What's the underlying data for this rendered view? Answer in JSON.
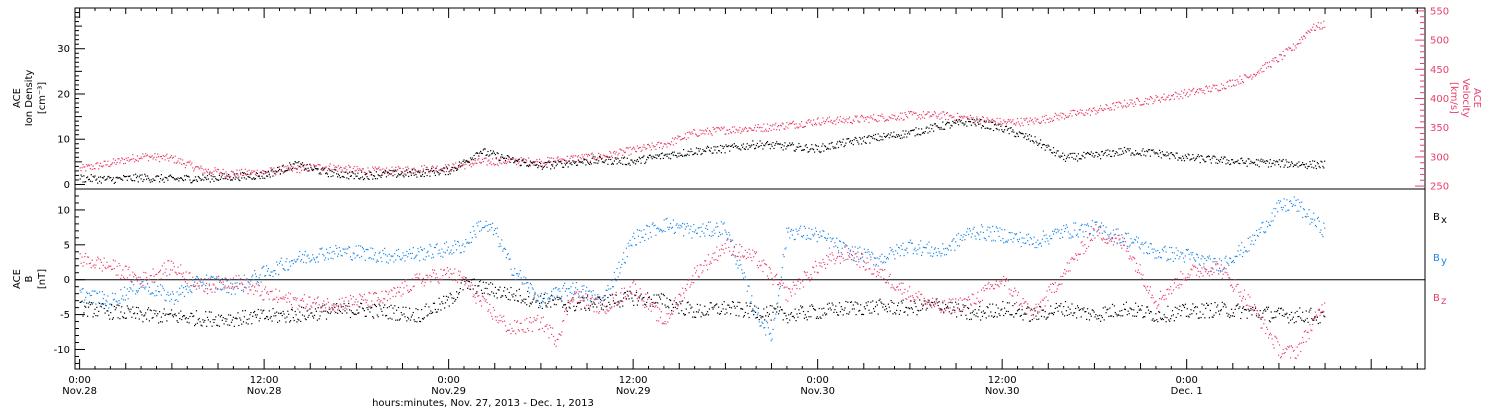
{
  "chart_data": [
    {
      "type": "scatter",
      "panel": "top",
      "ylabel_left": [
        "ACE",
        "Ion Density",
        "[cm⁻³]"
      ],
      "ylabel_right": [
        "ACE",
        "Velocity",
        "[km/s]"
      ],
      "ylim_left": [
        -1,
        39
      ],
      "ylim_right": [
        245,
        555
      ],
      "left_ticks": [
        "0",
        "10",
        "20",
        "30"
      ],
      "left_tick_values": [
        0,
        10,
        20,
        30
      ],
      "right_ticks": [
        "250",
        "300",
        "350",
        "400",
        "450",
        "500",
        "550"
      ],
      "right_tick_values": [
        250,
        300,
        350,
        400,
        450,
        500,
        550
      ],
      "colors": {
        "density": "#000000",
        "velocity": "#e8406a"
      },
      "series": [
        {
          "axis": "left",
          "color": "#000000",
          "points": [
            [
              0,
              1.5
            ],
            [
              2,
              1.2
            ],
            [
              4,
              1.6
            ],
            [
              6,
              1.3
            ],
            [
              8,
              1.5
            ],
            [
              10,
              1.8
            ],
            [
              12,
              2.2
            ],
            [
              14,
              4.5
            ],
            [
              16,
              2.8
            ],
            [
              18,
              2.0
            ],
            [
              20,
              2.4
            ],
            [
              22,
              2.6
            ],
            [
              24,
              3.2
            ],
            [
              25,
              5
            ],
            [
              26,
              7.5
            ],
            [
              27,
              6.5
            ],
            [
              28,
              5.5
            ],
            [
              30,
              4.2
            ],
            [
              32,
              5
            ],
            [
              34,
              5.5
            ],
            [
              36,
              5.2
            ],
            [
              38,
              6.5
            ],
            [
              40,
              7.5
            ],
            [
              42,
              8
            ],
            [
              44,
              9
            ],
            [
              46,
              8.5
            ],
            [
              48,
              8
            ],
            [
              50,
              9.5
            ],
            [
              52,
              10.5
            ],
            [
              54,
              11.5
            ],
            [
              56,
              13
            ],
            [
              58,
              14
            ],
            [
              60,
              12.5
            ],
            [
              62,
              10
            ],
            [
              64,
              6
            ],
            [
              66,
              6.5
            ],
            [
              68,
              7.5
            ],
            [
              70,
              7
            ],
            [
              72,
              6
            ],
            [
              74,
              5.5
            ],
            [
              76,
              5
            ],
            [
              78,
              4.8
            ],
            [
              80,
              4.5
            ],
            [
              81,
              4.5
            ]
          ]
        },
        {
          "axis": "right",
          "color": "#e8406a",
          "points": [
            [
              0,
              280
            ],
            [
              2,
              290
            ],
            [
              4,
              302
            ],
            [
              6,
              298
            ],
            [
              8,
              278
            ],
            [
              10,
              272
            ],
            [
              12,
              275
            ],
            [
              14,
              280
            ],
            [
              16,
              284
            ],
            [
              18,
              278
            ],
            [
              20,
              276
            ],
            [
              22,
              280
            ],
            [
              24,
              282
            ],
            [
              26,
              292
            ],
            [
              28,
              294
            ],
            [
              30,
              292
            ],
            [
              32,
              298
            ],
            [
              34,
              302
            ],
            [
              36,
              312
            ],
            [
              38,
              322
            ],
            [
              40,
              342
            ],
            [
              42,
              347
            ],
            [
              44,
              350
            ],
            [
              46,
              355
            ],
            [
              48,
              362
            ],
            [
              50,
              364
            ],
            [
              52,
              368
            ],
            [
              54,
              372
            ],
            [
              56,
              372
            ],
            [
              58,
              366
            ],
            [
              60,
              360
            ],
            [
              62,
              362
            ],
            [
              64,
              372
            ],
            [
              66,
              380
            ],
            [
              68,
              392
            ],
            [
              70,
              400
            ],
            [
              72,
              410
            ],
            [
              74,
              420
            ],
            [
              76,
              438
            ],
            [
              78,
              470
            ],
            [
              79,
              490
            ],
            [
              80,
              520
            ],
            [
              81,
              528
            ]
          ]
        }
      ]
    },
    {
      "type": "scatter",
      "panel": "bottom",
      "ylabel_left": [
        "ACE",
        "B",
        "[nT]"
      ],
      "ylim": [
        -12.8,
        13
      ],
      "left_ticks": [
        "-10",
        "-5",
        "0",
        "5",
        "10"
      ],
      "left_tick_values": [
        -10,
        -5,
        0,
        5,
        10
      ],
      "legend": [
        {
          "label": "B",
          "sub": "x",
          "color": "#000000"
        },
        {
          "label": "B",
          "sub": "y",
          "color": "#1e88e5"
        },
        {
          "label": "B",
          "sub": "z",
          "color": "#e8406a"
        }
      ],
      "series": [
        {
          "name": "Bx",
          "color": "#000000",
          "points": [
            [
              0,
              -4
            ],
            [
              2,
              -4.5
            ],
            [
              4,
              -5
            ],
            [
              6,
              -5.2
            ],
            [
              8,
              -5.5
            ],
            [
              10,
              -5.5
            ],
            [
              12,
              -5.2
            ],
            [
              14,
              -5.0
            ],
            [
              16,
              -4.5
            ],
            [
              18,
              -4.2
            ],
            [
              20,
              -4.5
            ],
            [
              22,
              -5
            ],
            [
              24,
              -3
            ],
            [
              25,
              -0.5
            ],
            [
              26,
              -1
            ],
            [
              28,
              -2
            ],
            [
              30,
              -3
            ],
            [
              32,
              -3.5
            ],
            [
              34,
              -3.2
            ],
            [
              36,
              -2.5
            ],
            [
              38,
              -3
            ],
            [
              40,
              -4.5
            ],
            [
              42,
              -4
            ],
            [
              44,
              -4.5
            ],
            [
              46,
              -5
            ],
            [
              48,
              -4.5
            ],
            [
              50,
              -4
            ],
            [
              52,
              -3.8
            ],
            [
              54,
              -4
            ],
            [
              56,
              -3.5
            ],
            [
              58,
              -5
            ],
            [
              60,
              -4
            ],
            [
              62,
              -5
            ],
            [
              64,
              -4
            ],
            [
              66,
              -5
            ],
            [
              68,
              -4
            ],
            [
              70,
              -5
            ],
            [
              72,
              -4.5
            ],
            [
              74,
              -4.2
            ],
            [
              76,
              -4.5
            ],
            [
              78,
              -5
            ],
            [
              80,
              -5
            ],
            [
              81,
              -5.5
            ]
          ]
        },
        {
          "name": "By",
          "color": "#1e88e5",
          "points": [
            [
              0,
              -2
            ],
            [
              2,
              -3
            ],
            [
              4,
              -0.5
            ],
            [
              6,
              -2.5
            ],
            [
              8,
              0
            ],
            [
              10,
              -1
            ],
            [
              12,
              1
            ],
            [
              14,
              3
            ],
            [
              16,
              4
            ],
            [
              18,
              4
            ],
            [
              20,
              3.5
            ],
            [
              22,
              3.8
            ],
            [
              24,
              4.5
            ],
            [
              25,
              5
            ],
            [
              26,
              8
            ],
            [
              27,
              7
            ],
            [
              28,
              2
            ],
            [
              30,
              -3
            ],
            [
              32,
              -1
            ],
            [
              34,
              -3
            ],
            [
              36,
              6
            ],
            [
              38,
              8
            ],
            [
              40,
              7
            ],
            [
              42,
              7.5
            ],
            [
              44,
              -5
            ],
            [
              45,
              -8
            ],
            [
              46,
              7
            ],
            [
              48,
              6.5
            ],
            [
              50,
              4
            ],
            [
              52,
              3
            ],
            [
              54,
              5
            ],
            [
              56,
              4
            ],
            [
              58,
              7
            ],
            [
              60,
              6.5
            ],
            [
              62,
              5.5
            ],
            [
              64,
              7
            ],
            [
              66,
              7.5
            ],
            [
              68,
              6
            ],
            [
              70,
              4
            ],
            [
              72,
              3.5
            ],
            [
              74,
              2
            ],
            [
              76,
              5
            ],
            [
              78,
              10.5
            ],
            [
              79,
              11
            ],
            [
              80,
              9
            ],
            [
              81,
              7
            ]
          ]
        },
        {
          "name": "Bz",
          "color": "#e8406a",
          "points": [
            [
              0,
              3
            ],
            [
              2,
              2
            ],
            [
              4,
              0
            ],
            [
              6,
              2
            ],
            [
              8,
              -1
            ],
            [
              10,
              0
            ],
            [
              12,
              -2
            ],
            [
              14,
              -3
            ],
            [
              16,
              -3.5
            ],
            [
              18,
              -3
            ],
            [
              20,
              -2.5
            ],
            [
              22,
              0
            ],
            [
              24,
              1
            ],
            [
              25,
              0
            ],
            [
              26,
              -3
            ],
            [
              27,
              -5
            ],
            [
              28,
              -7
            ],
            [
              30,
              -6
            ],
            [
              31,
              -8.5
            ],
            [
              32,
              -2
            ],
            [
              34,
              -4
            ],
            [
              36,
              -1
            ],
            [
              38,
              -6
            ],
            [
              40,
              1
            ],
            [
              42,
              5
            ],
            [
              44,
              3
            ],
            [
              46,
              -2
            ],
            [
              48,
              2
            ],
            [
              50,
              4
            ],
            [
              52,
              1
            ],
            [
              54,
              -2
            ],
            [
              56,
              -4
            ],
            [
              58,
              -3
            ],
            [
              60,
              0
            ],
            [
              62,
              -5
            ],
            [
              64,
              1
            ],
            [
              66,
              7
            ],
            [
              68,
              5
            ],
            [
              70,
              -3
            ],
            [
              72,
              1
            ],
            [
              74,
              2
            ],
            [
              76,
              -3
            ],
            [
              78,
              -10
            ],
            [
              79,
              -10.5
            ],
            [
              80,
              -7
            ],
            [
              81,
              -3
            ]
          ]
        }
      ]
    }
  ],
  "x_axis": {
    "xlim": [
      -0.3,
      87.5
    ],
    "tick_values": [
      0,
      12,
      24,
      36,
      48,
      60,
      72,
      84
    ],
    "tick_time": [
      "0:00",
      "12:00",
      "0:00",
      "12:00",
      "0:00",
      "12:00",
      "0:00",
      ""
    ],
    "tick_date": [
      "Nov.28",
      "Nov.28",
      "Nov.29",
      "Nov.29",
      "Nov.30",
      "Nov.30",
      "Dec. 1",
      ""
    ],
    "minor_tick_step": 1,
    "title": "hours:minutes, Nov. 27, 2013 - Dec. 1, 2013"
  }
}
